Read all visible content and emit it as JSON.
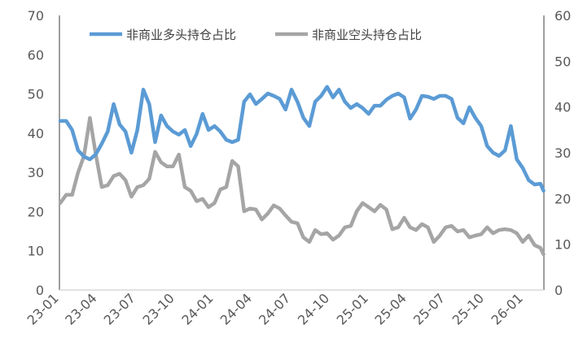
{
  "chart_data": {
    "type": "line",
    "title": "",
    "xlabel": "",
    "ylabel": "",
    "y2label": "",
    "grid": false,
    "legend_position": "top",
    "xlim": [
      "2023-01-01",
      "2026-02-18"
    ],
    "ylim": [
      0,
      70
    ],
    "y2lim": [
      0,
      60
    ],
    "yticks": [
      "0",
      "10",
      "20",
      "30",
      "40",
      "50",
      "60",
      "70"
    ],
    "y2ticks": [
      "0",
      "10",
      "20",
      "30",
      "40",
      "50",
      "60"
    ],
    "xticks": [
      {
        "date": "2023-01-01",
        "label": "23-01"
      },
      {
        "date": "2023-04-01",
        "label": "23-04"
      },
      {
        "date": "2023-07-01",
        "label": "23-07"
      },
      {
        "date": "2023-10-01",
        "label": "23-10"
      },
      {
        "date": "2024-01-01",
        "label": "24-01"
      },
      {
        "date": "2024-04-01",
        "label": "24-04"
      },
      {
        "date": "2024-07-01",
        "label": "24-07"
      },
      {
        "date": "2024-10-01",
        "label": "24-10"
      },
      {
        "date": "2025-01-01",
        "label": "25-01"
      },
      {
        "date": "2025-04-01",
        "label": "25-04"
      },
      {
        "date": "2025-07-01",
        "label": "25-07"
      },
      {
        "date": "2025-10-01",
        "label": "25-10"
      },
      {
        "date": "2026-01-01",
        "label": "26-01"
      }
    ],
    "x": [
      "2023-01-03",
      "2023-01-17",
      "2023-01-31",
      "2023-02-14",
      "2023-02-28",
      "2023-03-14",
      "2023-03-28",
      "2023-04-11",
      "2023-04-25",
      "2023-05-09",
      "2023-05-23",
      "2023-06-06",
      "2023-06-20",
      "2023-07-04",
      "2023-07-18",
      "2023-08-01",
      "2023-08-15",
      "2023-08-29",
      "2023-09-12",
      "2023-09-26",
      "2023-10-10",
      "2023-10-24",
      "2023-11-07",
      "2023-11-21",
      "2023-12-05",
      "2023-12-19",
      "2024-01-02",
      "2024-01-16",
      "2024-01-30",
      "2024-02-13",
      "2024-02-27",
      "2024-03-12",
      "2024-03-26",
      "2024-04-09",
      "2024-04-23",
      "2024-05-07",
      "2024-05-21",
      "2024-06-04",
      "2024-06-18",
      "2024-07-02",
      "2024-07-16",
      "2024-07-30",
      "2024-08-13",
      "2024-08-27",
      "2024-09-10",
      "2024-09-24",
      "2024-10-08",
      "2024-10-22",
      "2024-11-05",
      "2024-11-19",
      "2024-12-03",
      "2024-12-17",
      "2024-12-31",
      "2025-01-14",
      "2025-01-28",
      "2025-02-11",
      "2025-02-25",
      "2025-03-11",
      "2025-03-25",
      "2025-04-08",
      "2025-04-22",
      "2025-05-06",
      "2025-05-20",
      "2025-06-03",
      "2025-06-17",
      "2025-07-01",
      "2025-07-15",
      "2025-07-29",
      "2025-08-12",
      "2025-08-26",
      "2025-09-09",
      "2025-09-23",
      "2025-10-07",
      "2025-10-21",
      "2025-11-04",
      "2025-11-18",
      "2025-12-02",
      "2025-12-16",
      "2025-12-30",
      "2026-01-13",
      "2026-01-27",
      "2026-02-10",
      "2026-02-17"
    ],
    "series": [
      {
        "name": "非商业多头持仓占比",
        "axis": "left",
        "color": "#5B9BD5",
        "values": [
          43.1,
          43.1,
          40.8,
          35.6,
          34.0,
          33.3,
          34.6,
          37.3,
          40.4,
          47.4,
          42.2,
          40.4,
          35.0,
          40.8,
          51.1,
          47.4,
          37.7,
          44.5,
          41.8,
          40.4,
          39.6,
          40.8,
          36.7,
          39.8,
          44.9,
          40.8,
          41.8,
          40.4,
          38.3,
          37.7,
          38.3,
          48.0,
          49.9,
          47.4,
          48.7,
          50.1,
          49.5,
          48.7,
          46.0,
          51.1,
          48.0,
          43.9,
          41.8,
          48.0,
          49.5,
          51.8,
          49.1,
          51.1,
          48.0,
          46.4,
          47.4,
          46.4,
          44.9,
          47.0,
          47.0,
          48.5,
          49.5,
          50.1,
          49.1,
          43.7,
          46.0,
          49.5,
          49.3,
          48.7,
          49.5,
          49.5,
          48.7,
          43.9,
          42.5,
          46.6,
          43.9,
          41.8,
          36.7,
          35.0,
          34.2,
          35.6,
          41.8,
          33.3,
          31.1,
          28.0,
          26.9,
          27.1,
          25.3
        ]
      },
      {
        "name": "非商业空头持仓占比",
        "axis": "right",
        "color": "#A5A5A5",
        "values": [
          19.0,
          20.8,
          20.8,
          25.7,
          29.3,
          37.6,
          29.6,
          22.5,
          22.9,
          24.9,
          25.4,
          24.0,
          20.4,
          22.5,
          22.9,
          24.3,
          30.2,
          27.9,
          27.0,
          27.0,
          29.6,
          22.5,
          21.7,
          19.4,
          19.9,
          18.1,
          19.0,
          22.0,
          22.5,
          28.2,
          27.0,
          17.2,
          17.8,
          17.6,
          15.4,
          16.7,
          18.5,
          17.8,
          16.3,
          14.9,
          14.6,
          11.5,
          10.5,
          13.1,
          12.2,
          12.4,
          11.0,
          11.9,
          13.7,
          14.0,
          17.2,
          19.0,
          18.1,
          17.2,
          18.6,
          17.6,
          13.3,
          13.7,
          15.8,
          13.7,
          13.1,
          14.4,
          13.7,
          10.5,
          11.9,
          13.7,
          14.0,
          12.8,
          13.1,
          11.5,
          11.9,
          12.2,
          13.7,
          12.4,
          13.1,
          13.3,
          13.1,
          12.4,
          10.5,
          11.9,
          9.8,
          9.2,
          7.8
        ]
      }
    ]
  }
}
